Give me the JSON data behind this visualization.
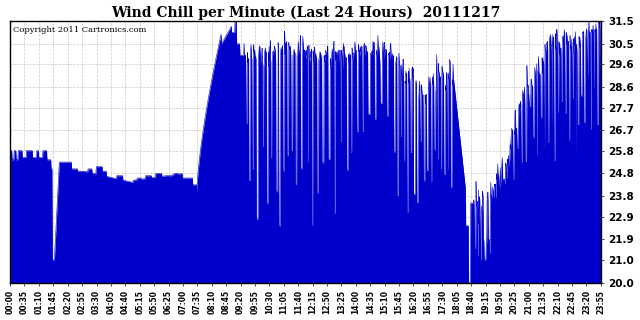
{
  "title": "Wind Chill per Minute (Last 24 Hours)  20111217",
  "copyright": "Copyright 2011 Cartronics.com",
  "line_color": "#0000CC",
  "fill_color": "#0000CC",
  "background_color": "#FFFFFF",
  "grid_color": "#BBBBBB",
  "yticks": [
    20.0,
    21.0,
    21.9,
    22.9,
    23.8,
    24.8,
    25.8,
    26.7,
    27.7,
    28.6,
    29.6,
    30.5,
    31.5
  ],
  "ylim": [
    20.0,
    31.5
  ],
  "x_labels": [
    "00:00",
    "00:35",
    "01:10",
    "01:45",
    "02:20",
    "02:55",
    "03:30",
    "04:05",
    "04:40",
    "05:15",
    "05:50",
    "06:25",
    "07:00",
    "07:35",
    "08:10",
    "08:45",
    "09:20",
    "09:55",
    "10:30",
    "11:05",
    "11:40",
    "12:15",
    "12:50",
    "13:25",
    "14:00",
    "14:35",
    "15:10",
    "15:45",
    "16:20",
    "16:55",
    "17:30",
    "18:05",
    "18:40",
    "19:15",
    "19:50",
    "20:25",
    "21:00",
    "21:35",
    "22:10",
    "22:45",
    "23:20",
    "23:55"
  ],
  "n_points": 1440
}
